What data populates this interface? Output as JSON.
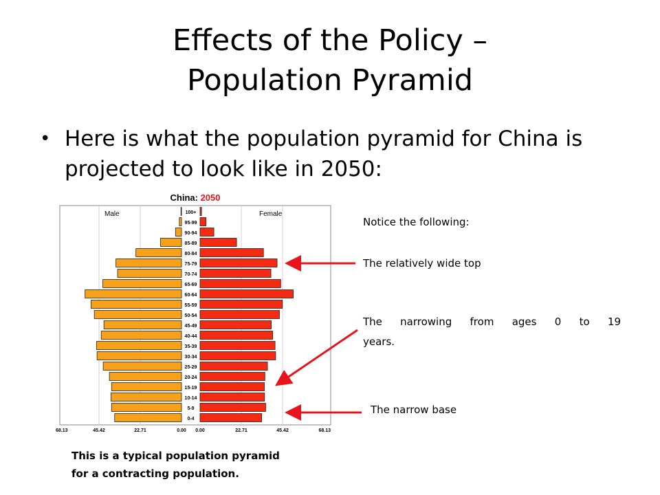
{
  "slide": {
    "title_line1": "Effects of the Policy –",
    "title_line2": "Population Pyramid",
    "bullet": "Here is what the population pyramid for China is projected to look like in 2050:",
    "notes": {
      "heading": "Notice the following:",
      "wide_top": "The relatively wide top",
      "narrowing_line1": "The narrowing from ages 0 to 19",
      "narrowing_line2": "years.",
      "narrow_base": "The narrow base"
    },
    "bottom_line1": "This is a typical population pyramid",
    "bottom_line2": "for a contracting population.",
    "arrow_color": "#e8141b"
  },
  "chart_data": {
    "type": "bar",
    "title_prefix": "China: ",
    "title_year": "2050",
    "title_year_color": "#e8141b",
    "male_label": "Male",
    "female_label": "Female",
    "male_color": "#f7a11a",
    "female_color": "#f52a12",
    "categories": [
      "100+",
      "95-99",
      "90-94",
      "85-89",
      "80-84",
      "75-79",
      "70-74",
      "65-69",
      "60-64",
      "55-59",
      "50-54",
      "45-49",
      "40-44",
      "35-39",
      "30-34",
      "25-29",
      "20-24",
      "15-19",
      "10-14",
      "5-9",
      "0-4"
    ],
    "series": [
      {
        "name": "Male",
        "values": [
          0.3,
          1.2,
          3.3,
          11.6,
          25.1,
          36.1,
          35.2,
          43.3,
          53.1,
          49.8,
          48.0,
          42.7,
          44.2,
          46.8,
          46.5,
          43.1,
          39.7,
          38.5,
          38.8,
          38.5,
          36.8
        ]
      },
      {
        "name": "Female",
        "values": [
          0.8,
          3.3,
          7.6,
          20.1,
          34.9,
          42.4,
          39.0,
          44.4,
          51.3,
          45.3,
          43.7,
          39.2,
          40.0,
          41.3,
          41.6,
          37.1,
          35.7,
          35.4,
          35.5,
          36.1,
          33.9
        ]
      }
    ],
    "xlim": [
      0,
      68.13
    ],
    "x_tick_labels_left": [
      "68.13",
      "45.42",
      "22.71",
      "0.00"
    ],
    "x_tick_labels_right": [
      "0.00",
      "22.71",
      "45.42",
      "68.13"
    ],
    "grid": true
  }
}
